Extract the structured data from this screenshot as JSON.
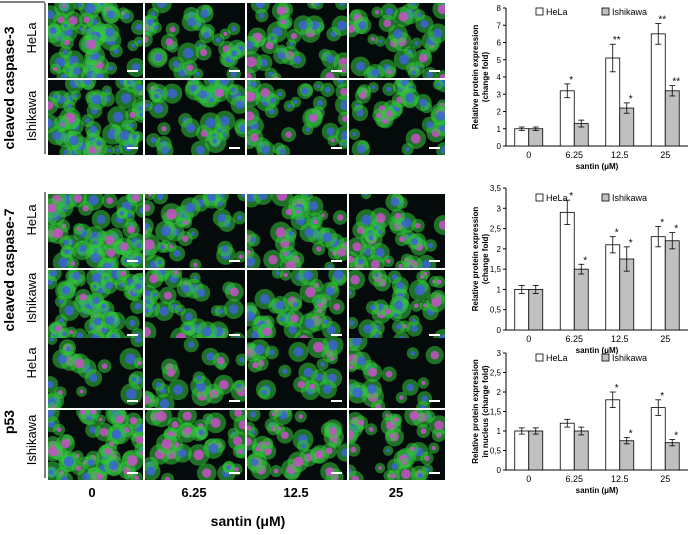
{
  "figure": {
    "row_group_labels": [
      "cleaved caspase-3",
      "cleaved caspase-7",
      "p53"
    ],
    "cell_line_labels": [
      "HeLa",
      "Ishikawa"
    ],
    "column_labels": [
      "0",
      "6.25",
      "12.5",
      "25"
    ],
    "column_axis_title": "santin (μM)",
    "palette": {
      "nuclear_blue": "#3c64d2",
      "green": "#32c83c",
      "red": "#dc3c3c",
      "magenta": "#c850c8",
      "background": "#050a0a"
    }
  },
  "chart_data": [
    {
      "type": "bar",
      "categories": [
        "0",
        "6.25",
        "12.5",
        "25"
      ],
      "series": [
        {
          "name": "HeLa",
          "values": [
            1.0,
            3.2,
            5.1,
            6.5
          ],
          "errors": [
            0.1,
            0.4,
            0.8,
            0.6
          ],
          "significance": [
            "",
            "*",
            "**",
            "**"
          ],
          "color": "#ffffff"
        },
        {
          "name": "Ishikawa",
          "values": [
            1.0,
            1.3,
            2.2,
            3.2
          ],
          "errors": [
            0.1,
            0.2,
            0.3,
            0.3
          ],
          "significance": [
            "",
            "",
            "*",
            "**"
          ],
          "color": "#c0c0c0"
        }
      ],
      "ylabel": "Relative protein expression (change fold)",
      "ylabel_lines": [
        "Relative protein expression",
        "(change fold)"
      ],
      "xlabel": "santin (μM)",
      "ylim": [
        0,
        8
      ],
      "yticks": [
        "0",
        "1",
        "2",
        "3",
        "4",
        "5",
        "6",
        "7",
        "8"
      ],
      "legend_position": "top"
    },
    {
      "type": "bar",
      "categories": [
        "0",
        "6.25",
        "12.5",
        "25"
      ],
      "series": [
        {
          "name": "HeLa",
          "values": [
            1.0,
            2.9,
            2.1,
            2.3
          ],
          "errors": [
            0.1,
            0.3,
            0.2,
            0.25
          ],
          "significance": [
            "",
            "*",
            "*",
            "*"
          ],
          "color": "#ffffff"
        },
        {
          "name": "Ishikawa",
          "values": [
            1.0,
            1.5,
            1.75,
            2.2
          ],
          "errors": [
            0.1,
            0.12,
            0.3,
            0.2
          ],
          "significance": [
            "",
            "*",
            "*",
            "*"
          ],
          "color": "#c0c0c0"
        }
      ],
      "ylabel": "Relative protein expression (change fold)",
      "ylabel_lines": [
        "Relative protein expression",
        "(change fold)"
      ],
      "xlabel": "santin (μM)",
      "ylim": [
        0,
        3.5
      ],
      "yticks": [
        "0",
        "0,5",
        "1",
        "1,5",
        "2",
        "2,5",
        "3",
        "3,5"
      ],
      "legend_position": "top"
    },
    {
      "type": "bar",
      "categories": [
        "0",
        "6.25",
        "12.5",
        "25"
      ],
      "series": [
        {
          "name": "HeLa",
          "values": [
            1.0,
            1.2,
            1.8,
            1.6
          ],
          "errors": [
            0.08,
            0.1,
            0.2,
            0.2
          ],
          "significance": [
            "",
            "",
            "*",
            "*"
          ],
          "color": "#ffffff"
        },
        {
          "name": "Ishikawa",
          "values": [
            1.0,
            1.0,
            0.75,
            0.7
          ],
          "errors": [
            0.08,
            0.1,
            0.08,
            0.08
          ],
          "significance": [
            "",
            "",
            "*",
            "*"
          ],
          "color": "#c0c0c0"
        }
      ],
      "ylabel": "Relative protein expression in nucleus (change fold)",
      "ylabel_lines": [
        "Relative protein expression",
        "in nucleus (change fold)"
      ],
      "xlabel": "santin (μM)",
      "ylim": [
        0,
        3
      ],
      "yticks": [
        "0",
        "0,5",
        "1",
        "1,5",
        "2",
        "2,5",
        "3"
      ],
      "legend_position": "top"
    }
  ]
}
